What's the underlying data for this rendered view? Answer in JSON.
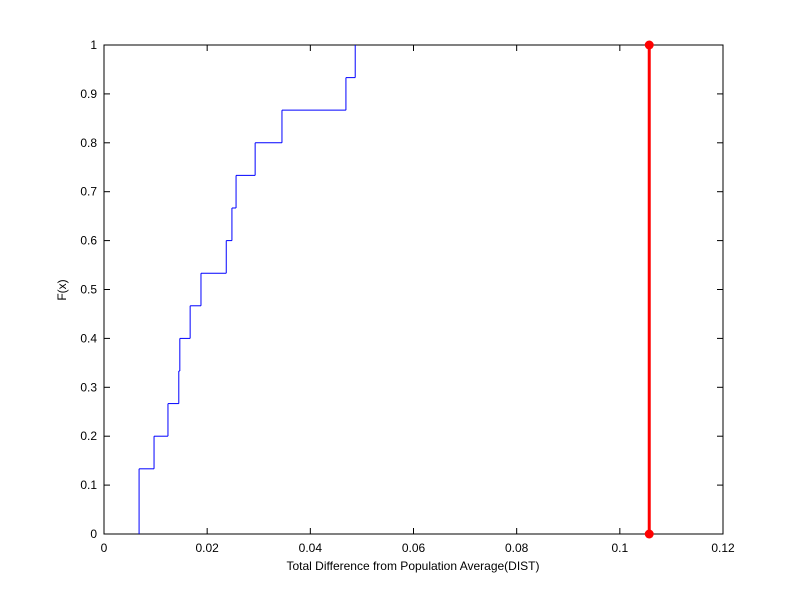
{
  "chart_data": {
    "type": "line",
    "x_label": "Total Difference from Population Average(DIST)",
    "y_label": "F(x)",
    "xlim": [
      0,
      0.12
    ],
    "xticks": [
      0,
      0.02,
      0.04,
      0.06,
      0.08,
      0.1,
      0.12
    ],
    "ylim": [
      0,
      1
    ],
    "yticks": [
      0,
      0.1,
      0.2,
      0.3,
      0.4,
      0.5,
      0.6,
      0.7,
      0.8,
      0.9,
      1
    ],
    "series": [
      {
        "style": "stairs",
        "color": "#0000ff",
        "x": [
          0.0068,
          0.0068,
          0.0097,
          0.0124,
          0.0145,
          0.0147,
          0.0167,
          0.0188,
          0.0237,
          0.0248,
          0.0256,
          0.0293,
          0.0345,
          0.0469,
          0.0487
        ],
        "values": [
          0,
          0.1333,
          0.2,
          0.2667,
          0.3333,
          0.4,
          0.4667,
          0.5333,
          0.6,
          0.6667,
          0.7333,
          0.8,
          0.8667,
          0.9333,
          1
        ]
      },
      {
        "style": "markers-line",
        "color": "#ff0000",
        "x": [
          0.1057,
          0.1057
        ],
        "values": [
          0,
          1
        ]
      }
    ]
  }
}
